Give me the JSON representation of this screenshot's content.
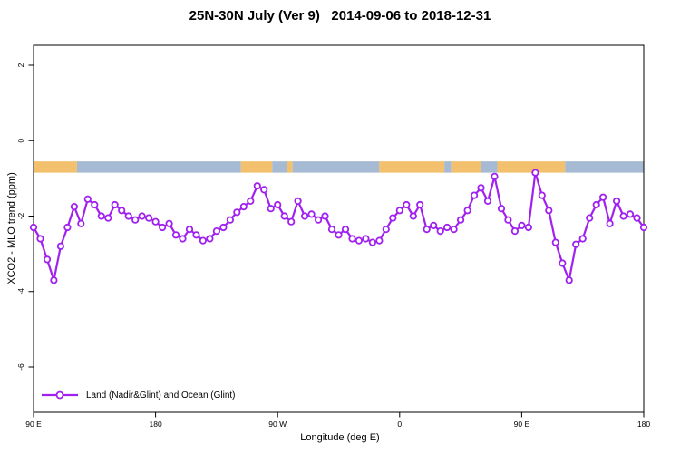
{
  "chart_data": {
    "type": "line",
    "title": "25N-30N July (Ver 9)   2014-09-06 to 2018-12-31",
    "xlabel": "Longitude (deg E)",
    "ylabel": "XCO2 - MLO trend (ppm)",
    "ylim": [
      -7.2,
      2.5
    ],
    "grid": false,
    "legend": [
      "Land (Nadir&Glint) and Ocean (Glint)"
    ],
    "legend_position": "bottom-left",
    "x_ticks": [
      {
        "pos": 90,
        "label": "90 E"
      },
      {
        "pos": 180,
        "label": "180"
      },
      {
        "pos": 270,
        "label": "90 W"
      },
      {
        "pos": 360,
        "label": "0"
      },
      {
        "pos": 450,
        "label": "90 E"
      },
      {
        "pos": 540,
        "label": "180"
      }
    ],
    "y_ticks": [
      {
        "pos": 2,
        "label": "2"
      },
      {
        "pos": 0,
        "label": "0"
      },
      {
        "pos": -2,
        "label": "-2"
      },
      {
        "pos": -4,
        "label": "-4"
      },
      {
        "pos": -6,
        "label": "-6"
      }
    ],
    "style": {
      "line_color": "#A020F0",
      "marker": "open-circle",
      "marker_fill": "#FFFFFF"
    },
    "surface_band": {
      "y_range": [
        -0.85,
        -0.55
      ],
      "colors": {
        "land": "#F3C06E",
        "ocean": "#A6BBD3"
      },
      "segments": [
        {
          "from": 90,
          "to": 122,
          "surface": "land"
        },
        {
          "from": 122,
          "to": 243,
          "surface": "ocean"
        },
        {
          "from": 243,
          "to": 266,
          "surface": "land"
        },
        {
          "from": 266,
          "to": 277,
          "surface": "ocean"
        },
        {
          "from": 277,
          "to": 281,
          "surface": "land"
        },
        {
          "from": 281,
          "to": 345,
          "surface": "ocean"
        },
        {
          "from": 345,
          "to": 393,
          "surface": "land"
        },
        {
          "from": 393,
          "to": 398,
          "surface": "ocean"
        },
        {
          "from": 398,
          "to": 420,
          "surface": "land"
        },
        {
          "from": 420,
          "to": 432,
          "surface": "ocean"
        },
        {
          "from": 432,
          "to": 482,
          "surface": "land"
        },
        {
          "from": 482,
          "to": 540,
          "surface": "ocean"
        }
      ]
    },
    "series": [
      {
        "name": "Land (Nadir&Glint) and Ocean (Glint)",
        "x_start": 90,
        "x_step": 5,
        "values": [
          -2.3,
          -2.6,
          -3.15,
          -3.7,
          -2.8,
          -2.3,
          -1.75,
          -2.2,
          -1.55,
          -1.7,
          -2.0,
          -2.05,
          -1.7,
          -1.85,
          -2.0,
          -2.1,
          -2.0,
          -2.05,
          -2.15,
          -2.3,
          -2.2,
          -2.5,
          -2.6,
          -2.35,
          -2.5,
          -2.65,
          -2.6,
          -2.4,
          -2.3,
          -2.1,
          -1.9,
          -1.75,
          -1.6,
          -1.2,
          -1.3,
          -1.8,
          -1.7,
          -2.0,
          -2.15,
          -1.6,
          -2.0,
          -1.95,
          -2.1,
          -2.0,
          -2.35,
          -2.5,
          -2.35,
          -2.6,
          -2.65,
          -2.6,
          -2.7,
          -2.65,
          -2.35,
          -2.05,
          -1.85,
          -1.7,
          -2.0,
          -1.7,
          -2.35,
          -2.25,
          -2.4,
          -2.3,
          -2.35,
          -2.1,
          -1.85,
          -1.45,
          -1.25,
          -1.6,
          -0.95,
          -1.8,
          -2.1,
          -2.4,
          -2.25,
          -2.3,
          -0.85,
          -1.45,
          -1.85,
          -2.7,
          -3.25,
          -3.7,
          -2.75,
          -2.6,
          -2.05,
          -1.7,
          -1.5,
          -2.2,
          -1.6,
          -2.0,
          -1.95,
          -2.05,
          -2.3
        ]
      }
    ]
  }
}
